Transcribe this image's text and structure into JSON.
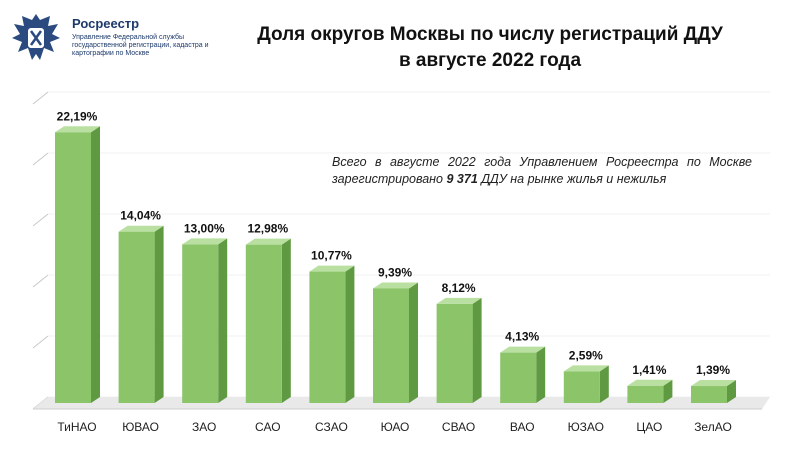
{
  "logo": {
    "name": "Росреестр",
    "subtitle": "Управление Федеральной службы государственной регистрации, кадастра и картографии по Москве"
  },
  "title": {
    "line1": "Доля округов Москвы по числу регистраций ДДУ",
    "line2": "в августе 2022 года"
  },
  "note": {
    "before": "Всего в августе 2022 года Управлением Росреестра по Москве зарегистрировано ",
    "highlight": "9 371",
    "after": " ДДУ на рынке жилья и нежилья"
  },
  "colors": {
    "bar_front": "#8cc46a",
    "bar_side": "#5f9a43",
    "bar_top": "#b9e0a0"
  },
  "chart_data": {
    "type": "bar",
    "title": "Доля округов Москвы по числу регистраций ДДУ в августе 2022 года",
    "categories": [
      "ТиНАО",
      "ЮВАО",
      "ЗАО",
      "САО",
      "СЗАО",
      "ЮАО",
      "СВАО",
      "ВАО",
      "ЮЗАО",
      "ЦАО",
      "ЗелАО"
    ],
    "values": [
      22.19,
      14.04,
      13.0,
      12.98,
      10.77,
      9.39,
      8.12,
      4.13,
      2.59,
      1.41,
      1.39
    ],
    "labels": [
      "22,19%",
      "14,04%",
      "13,00%",
      "12,98%",
      "10,77%",
      "9,39%",
      "8,12%",
      "4,13%",
      "2,59%",
      "1,41%",
      "1,39%"
    ],
    "ylim": [
      0,
      25
    ],
    "grid": true
  }
}
